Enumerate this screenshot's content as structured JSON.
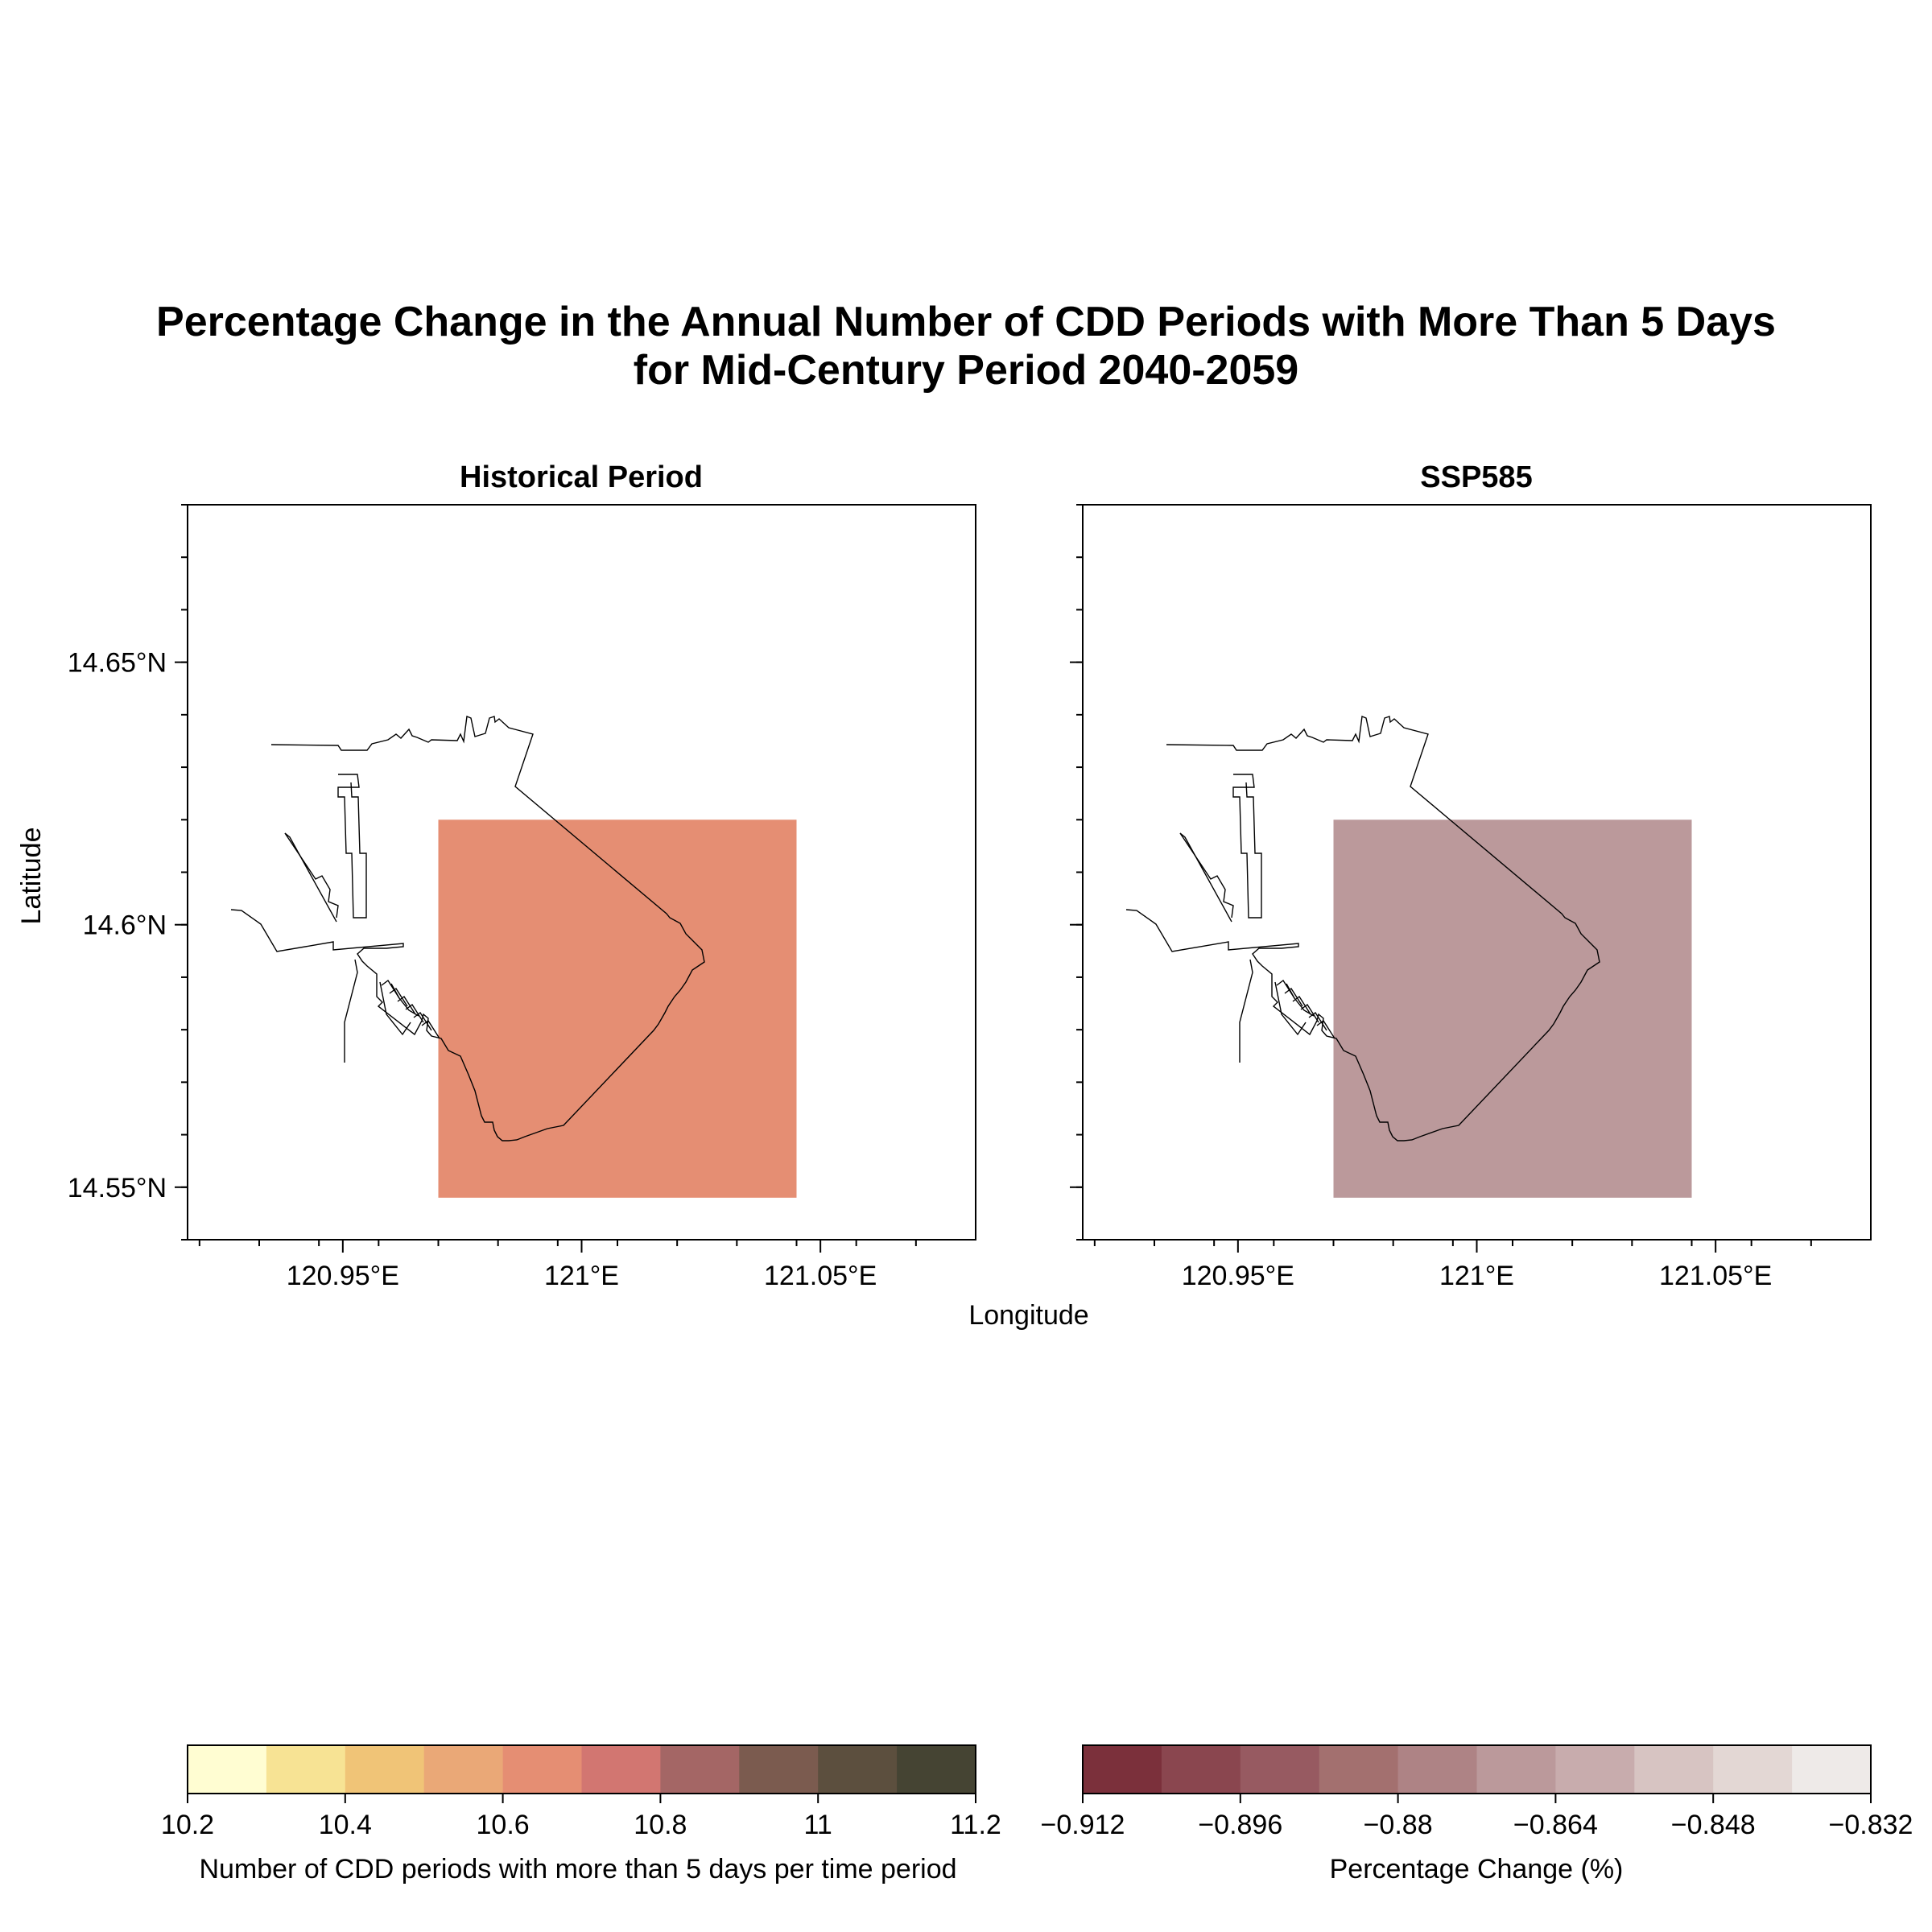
{
  "figure": {
    "title_line1": "Percentage Change in the Annual Number of CDD Periods with More Than 5 Days",
    "title_line2": "for Mid-Century Period 2040-2059",
    "xlabel": "Longitude",
    "ylabel": "Latitude"
  },
  "chart_data": [
    {
      "type": "heatmap",
      "title": "Historical Period",
      "x_ticks": [
        "120.95°E",
        "121°E",
        "121.05°E"
      ],
      "y_ticks": [
        "14.55°N",
        "14.6°N",
        "14.65°N"
      ],
      "xlim": [
        120.9175,
        121.0825
      ],
      "ylim": [
        14.54,
        14.68
      ],
      "cell": {
        "lon": [
          120.97,
          121.045
        ],
        "lat": [
          14.548,
          14.62
        ],
        "value": 10.65,
        "color": "#e58e73"
      },
      "colorbar": {
        "label": "Number of CDD periods with more than 5 days per time period",
        "ticks": [
          "10.2",
          "10.4",
          "10.6",
          "10.8",
          "11",
          "11.2"
        ],
        "colors": [
          "#fffdd2",
          "#f7e394",
          "#f0c477",
          "#eaa877",
          "#e58e73",
          "#d27671",
          "#a46665",
          "#7b5b4f",
          "#5c4f3e",
          "#454433"
        ]
      }
    },
    {
      "type": "heatmap",
      "title": "SSP585",
      "x_ticks": [
        "120.95°E",
        "121°E",
        "121.05°E"
      ],
      "y_ticks": [
        "14.55°N",
        "14.6°N",
        "14.65°N"
      ],
      "xlim": [
        120.9175,
        121.0825
      ],
      "ylim": [
        14.54,
        14.68
      ],
      "cell": {
        "lon": [
          120.97,
          121.045
        ],
        "lat": [
          14.548,
          14.62
        ],
        "value": -0.86,
        "color": "#bb999b"
      },
      "colorbar": {
        "label": "Percentage Change (%)",
        "ticks": [
          "−0.912",
          "−0.896",
          "−0.88",
          "−0.864",
          "−0.848",
          "−0.832"
        ],
        "colors": [
          "#7b303b",
          "#8a464f",
          "#975a61",
          "#a3706f",
          "#ae8385",
          "#bb999b",
          "#c8acad",
          "#d7c4c2",
          "#e3d7d4",
          "#eeeae8"
        ]
      }
    }
  ]
}
